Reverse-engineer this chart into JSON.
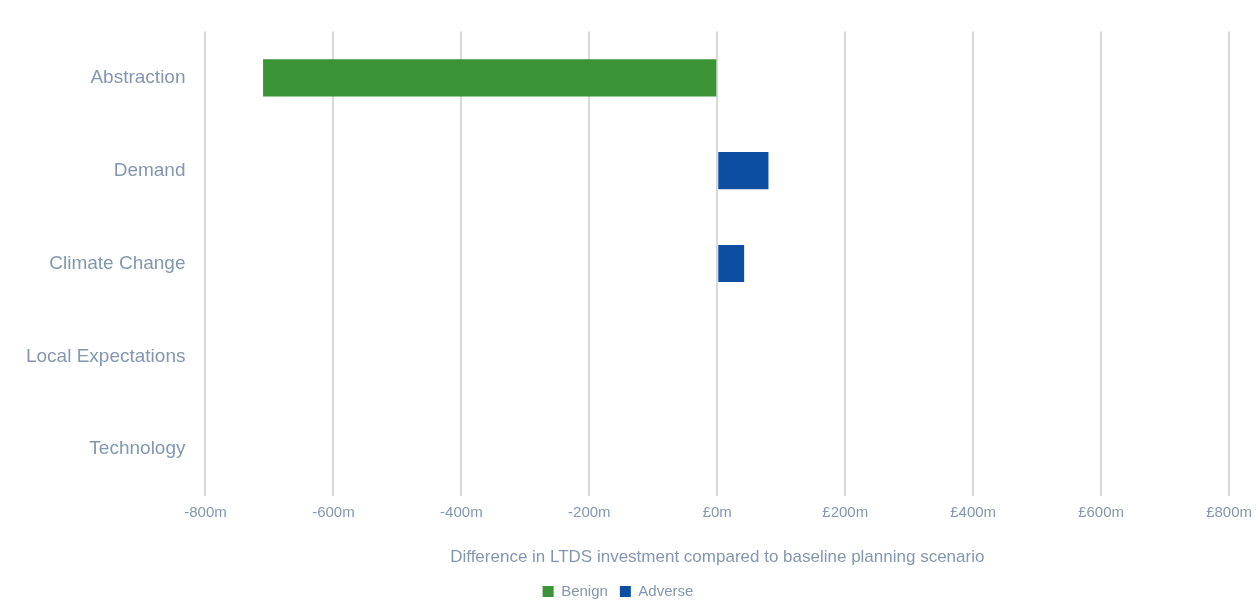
{
  "chart_data": {
    "type": "bar",
    "orientation": "horizontal",
    "stacked": true,
    "xlabel": "Difference in LTDS investment compared to baseline planning scenario",
    "categories": [
      "Abstraction",
      "Demand",
      "Climate Change",
      "Local Expectations",
      "Technology"
    ],
    "series": [
      {
        "name": "Benign",
        "color": "#3a9335",
        "values": [
          -710,
          null,
          null,
          null,
          null
        ]
      },
      {
        "name": "Adverse",
        "color": "#0b4ea2",
        "values": [
          null,
          80,
          42,
          null,
          null
        ]
      }
    ],
    "xlim": [
      -800,
      800
    ],
    "xticks": [
      {
        "value": -800,
        "label": "-800m"
      },
      {
        "value": -600,
        "label": "-600m"
      },
      {
        "value": -400,
        "label": "-400m"
      },
      {
        "value": -200,
        "label": "-200m"
      },
      {
        "value": 0,
        "label": "£0m"
      },
      {
        "value": 200,
        "label": "£200m"
      },
      {
        "value": 400,
        "label": "£400m"
      },
      {
        "value": 600,
        "label": "£600m"
      },
      {
        "value": 800,
        "label": "£800m"
      }
    ],
    "grid": "x",
    "legend": "bottom"
  }
}
